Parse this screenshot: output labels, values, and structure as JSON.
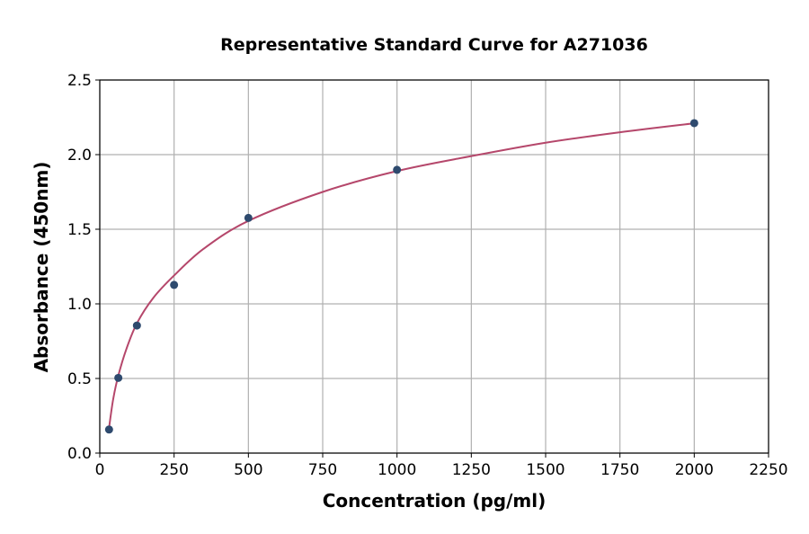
{
  "chart_data": {
    "type": "scatter",
    "title": "Representative Standard Curve for A271036",
    "xlabel": "Concentration (pg/ml)",
    "ylabel": "Absorbance (450nm)",
    "xlim": [
      0,
      2250
    ],
    "ylim": [
      0,
      2.5
    ],
    "xticks": [
      0,
      250,
      500,
      750,
      1000,
      1250,
      1500,
      1750,
      2000,
      2250
    ],
    "yticks": [
      "0.0",
      "0.5",
      "1.0",
      "1.5",
      "2.0",
      "2.5"
    ],
    "grid": true,
    "points": {
      "x": [
        31.25,
        62.5,
        125,
        250,
        500,
        1000,
        2000
      ],
      "y": [
        0.158,
        0.504,
        0.855,
        1.127,
        1.576,
        1.898,
        2.211
      ]
    },
    "fit_curve": {
      "x": [
        31.25,
        45,
        62.5,
        90,
        125,
        180,
        250,
        350,
        500,
        750,
        1000,
        1250,
        1500,
        1750,
        2000
      ],
      "y": [
        0.17,
        0.36,
        0.52,
        0.7,
        0.87,
        1.04,
        1.19,
        1.37,
        1.556,
        1.75,
        1.89,
        1.99,
        2.08,
        2.15,
        2.21
      ]
    },
    "colors": {
      "points": "#2e4a6e",
      "curve": "#b5476b",
      "grid": "#b0b0b0"
    }
  }
}
